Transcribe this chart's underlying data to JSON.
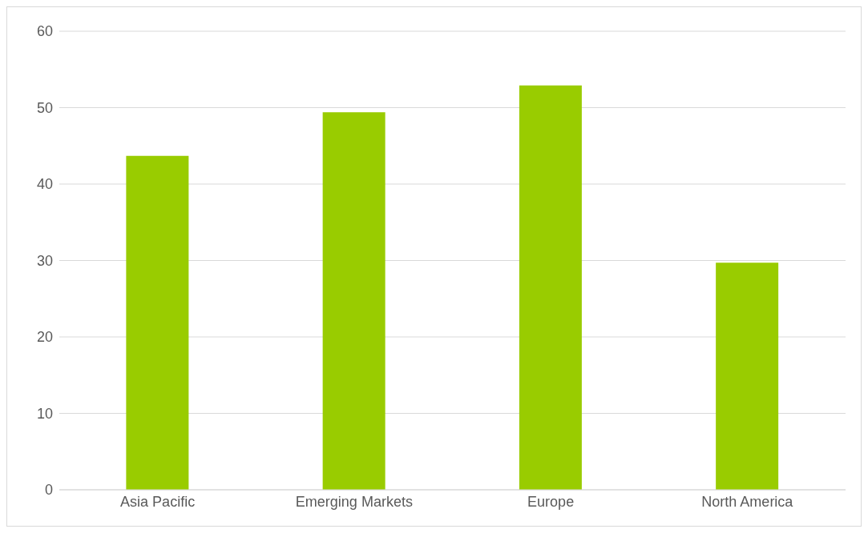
{
  "chart_data": {
    "type": "bar",
    "categories": [
      "Asia Pacific",
      "Emerging Markets",
      "Europe",
      "North America"
    ],
    "values": [
      43.7,
      49.4,
      52.9,
      29.7
    ],
    "color": "#99cc00",
    "ylim": [
      0,
      60
    ],
    "yticks": [
      0,
      10,
      20,
      30,
      40,
      50,
      60
    ],
    "grid": "y"
  }
}
